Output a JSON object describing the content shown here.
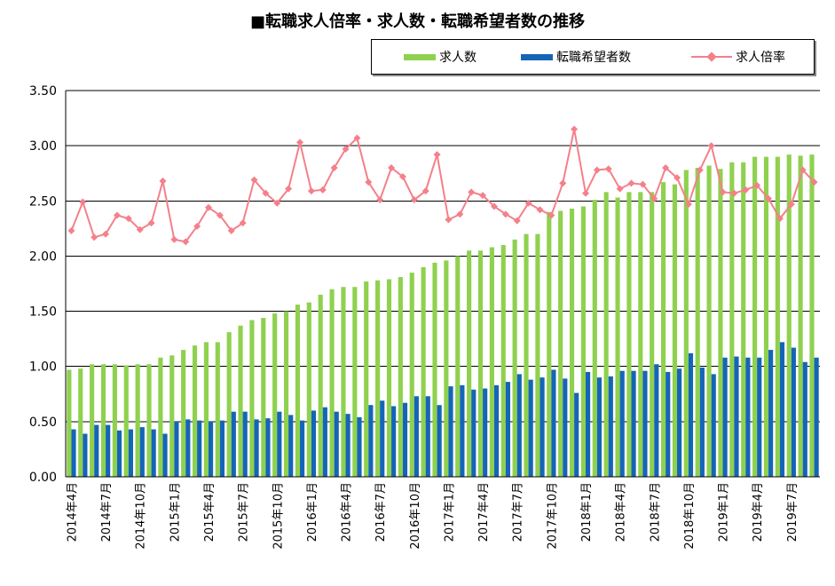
{
  "title": "■転職求人倍率・求人数・転職希望者数の推移",
  "colors": {
    "jobs": "#8fd14f",
    "seekers": "#1565b7",
    "ratio": "#f4808a",
    "axis": "#000000",
    "grid": "#000000"
  },
  "chart_data": {
    "type": "bar",
    "ylim": [
      0,
      3.5
    ],
    "yticks": [
      "0.00",
      "0.50",
      "1.00",
      "1.50",
      "2.00",
      "2.50",
      "3.00",
      "3.50"
    ],
    "grid": true,
    "legend_position": "top-right",
    "x_labels": [
      "2014年4月",
      "2014年7月",
      "2014年10月",
      "2015年1月",
      "2015年4月",
      "2015年7月",
      "2015年10月",
      "2016年1月",
      "2016年4月",
      "2016年7月",
      "2016年10月",
      "2017年1月",
      "2017年4月",
      "2017年7月",
      "2017年10月",
      "2018年1月",
      "2018年4月",
      "2018年7月",
      "2018年10月",
      "2019年1月",
      "2019年4月",
      "2019年7月"
    ],
    "x_label_step": 3,
    "series": [
      {
        "name": "求人数",
        "kind": "bar",
        "values": [
          0.97,
          0.98,
          1.02,
          1.02,
          1.02,
          1.01,
          1.02,
          1.02,
          1.08,
          1.1,
          1.15,
          1.19,
          1.22,
          1.22,
          1.31,
          1.37,
          1.42,
          1.44,
          1.48,
          1.5,
          1.56,
          1.58,
          1.65,
          1.7,
          1.72,
          1.72,
          1.77,
          1.78,
          1.79,
          1.81,
          1.85,
          1.9,
          1.94,
          1.96,
          2.0,
          2.05,
          2.05,
          2.08,
          2.1,
          2.15,
          2.2,
          2.2,
          2.4,
          2.41,
          2.43,
          2.45,
          2.51,
          2.58,
          2.53,
          2.58,
          2.58,
          2.58,
          2.67,
          2.65,
          2.78,
          2.8,
          2.82,
          2.79,
          2.85,
          2.85,
          2.9,
          2.9,
          2.9,
          2.92,
          2.91,
          2.92
        ]
      },
      {
        "name": "転職希望者数",
        "kind": "bar",
        "values": [
          0.43,
          0.39,
          0.47,
          0.47,
          0.42,
          0.43,
          0.45,
          0.43,
          0.39,
          0.5,
          0.52,
          0.51,
          0.5,
          0.51,
          0.59,
          0.59,
          0.52,
          0.53,
          0.59,
          0.56,
          0.51,
          0.6,
          0.63,
          0.59,
          0.57,
          0.54,
          0.65,
          0.69,
          0.64,
          0.67,
          0.73,
          0.73,
          0.65,
          0.82,
          0.83,
          0.79,
          0.8,
          0.83,
          0.86,
          0.93,
          0.88,
          0.9,
          0.97,
          0.89,
          0.76,
          0.95,
          0.9,
          0.91,
          0.96,
          0.96,
          0.96,
          1.02,
          0.95,
          0.98,
          1.12,
          0.99,
          0.93,
          1.08,
          1.09,
          1.08,
          1.08,
          1.15,
          1.22,
          1.17,
          1.04,
          1.08
        ]
      },
      {
        "name": "求人倍率",
        "kind": "line",
        "values": [
          2.23,
          2.49,
          2.17,
          2.2,
          2.37,
          2.34,
          2.24,
          2.3,
          2.68,
          2.15,
          2.13,
          2.27,
          2.44,
          2.37,
          2.23,
          2.3,
          2.69,
          2.57,
          2.48,
          2.61,
          3.03,
          2.59,
          2.6,
          2.8,
          2.97,
          3.07,
          2.67,
          2.51,
          2.8,
          2.72,
          2.51,
          2.59,
          2.92,
          2.33,
          2.38,
          2.58,
          2.55,
          2.45,
          2.38,
          2.32,
          2.48,
          2.42,
          2.37,
          2.66,
          3.15,
          2.57,
          2.78,
          2.79,
          2.61,
          2.66,
          2.65,
          2.52,
          2.8,
          2.71,
          2.47,
          2.78,
          3.0,
          2.58,
          2.57,
          2.6,
          2.64,
          2.52,
          2.34,
          2.47,
          2.78,
          2.67
        ]
      }
    ]
  }
}
